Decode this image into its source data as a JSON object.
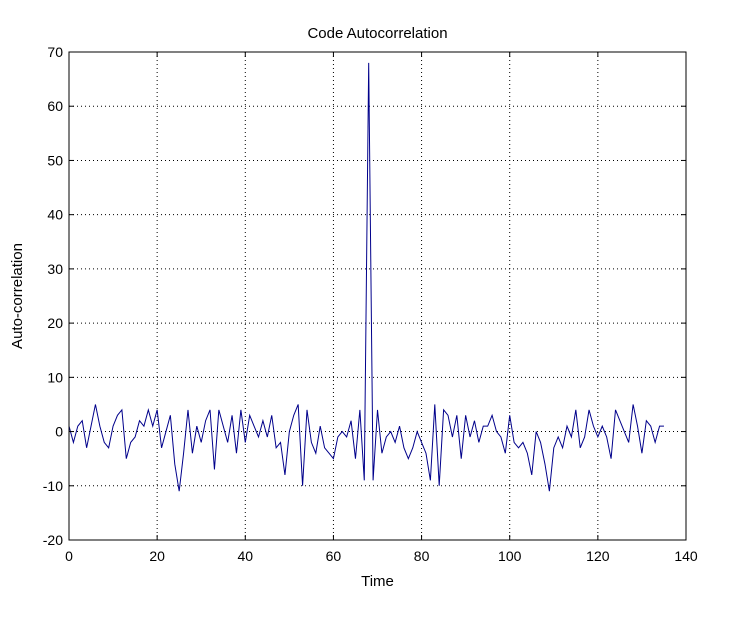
{
  "chart_data": {
    "type": "line",
    "title": "Code Autocorrelation",
    "xlabel": "Time",
    "ylabel": "Auto-correlation",
    "xlim": [
      0,
      140
    ],
    "ylim": [
      -20,
      70
    ],
    "xticks": [
      0,
      20,
      40,
      60,
      80,
      100,
      120,
      140
    ],
    "yticks": [
      -20,
      -10,
      0,
      10,
      20,
      30,
      40,
      50,
      60,
      70
    ],
    "grid": true,
    "grid_style": "dotted",
    "series": [
      {
        "color": "#00008b",
        "x": [
          0,
          1,
          2,
          3,
          4,
          5,
          6,
          7,
          8,
          9,
          10,
          11,
          12,
          13,
          14,
          15,
          16,
          17,
          18,
          19,
          20,
          21,
          22,
          23,
          24,
          25,
          26,
          27,
          28,
          29,
          30,
          31,
          32,
          33,
          34,
          35,
          36,
          37,
          38,
          39,
          40,
          41,
          42,
          43,
          44,
          45,
          46,
          47,
          48,
          49,
          50,
          51,
          52,
          53,
          54,
          55,
          56,
          57,
          58,
          59,
          60,
          61,
          62,
          63,
          64,
          65,
          66,
          67,
          68,
          69,
          70,
          71,
          72,
          73,
          74,
          75,
          76,
          77,
          78,
          79,
          80,
          81,
          82,
          83,
          84,
          85,
          86,
          87,
          88,
          89,
          90,
          91,
          92,
          93,
          94,
          95,
          96,
          97,
          98,
          99,
          100,
          101,
          102,
          103,
          104,
          105,
          106,
          107,
          108,
          109,
          110,
          111,
          112,
          113,
          114,
          115,
          116,
          117,
          118,
          119,
          120,
          121,
          122,
          123,
          124,
          125,
          126,
          127,
          128,
          129,
          130,
          131,
          132,
          133,
          134,
          135
        ],
        "y": [
          1,
          -2,
          1,
          2,
          -3,
          1,
          5,
          1,
          -2,
          -3,
          1,
          3,
          4,
          -5,
          -2,
          -1,
          2,
          1,
          4,
          1,
          4,
          -3,
          0,
          3,
          -6,
          -11,
          -4,
          4,
          -4,
          1,
          -2,
          2,
          4,
          -7,
          4,
          1,
          -2,
          3,
          -4,
          4,
          -2,
          3,
          1,
          -1,
          2,
          -1,
          3,
          -3,
          -2,
          -8,
          0,
          3,
          5,
          -10,
          4,
          -2,
          -4,
          1,
          -3,
          -4,
          -5,
          -1,
          0,
          -1,
          2,
          -5,
          4,
          -9,
          68,
          -9,
          4,
          -4,
          -1,
          0,
          -2,
          1,
          -3,
          -5,
          -3,
          0,
          -2,
          -4,
          -9,
          5,
          -10,
          4,
          3,
          -1,
          3,
          -5,
          3,
          -1,
          2,
          -2,
          1,
          1,
          3,
          0,
          -1,
          -4,
          3,
          -2,
          -3,
          -2,
          -4,
          -8,
          0,
          -2,
          -6,
          -11,
          -3,
          -1,
          -3,
          1,
          -1,
          4,
          -3,
          -1,
          4,
          1,
          -1,
          1,
          -1,
          -5,
          4,
          2,
          0,
          -2,
          5,
          1,
          -4,
          2,
          1,
          -2,
          1,
          1
        ]
      }
    ]
  }
}
